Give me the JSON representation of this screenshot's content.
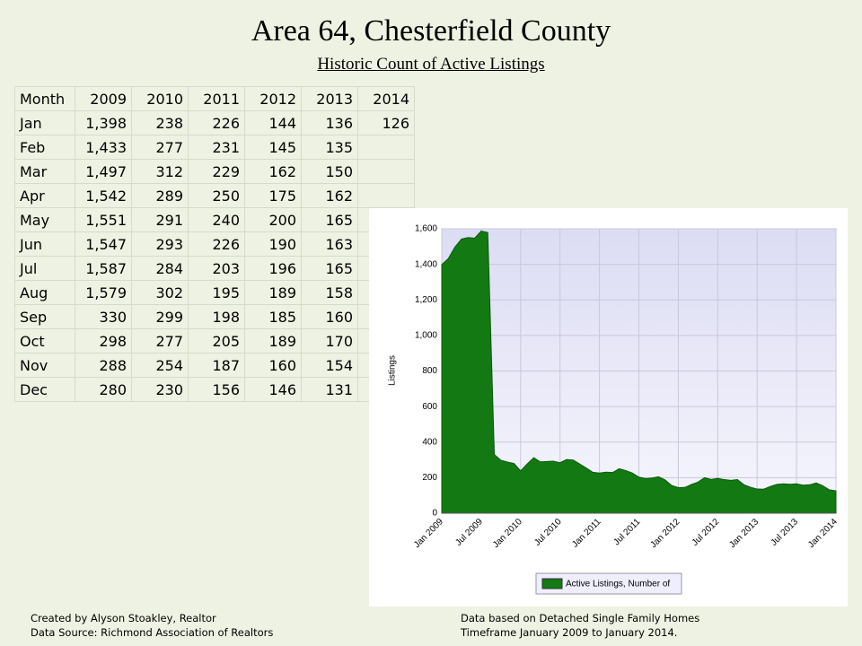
{
  "header": {
    "title": "Area 64, Chesterfield County",
    "subtitle": "Historic Count of Active Listings"
  },
  "table": {
    "header": [
      "Month",
      "2009",
      "2010",
      "2011",
      "2012",
      "2013",
      "2014"
    ],
    "rows": [
      [
        "Jan",
        "1,398",
        "238",
        "226",
        "144",
        "136",
        "126"
      ],
      [
        "Feb",
        "1,433",
        "277",
        "231",
        "145",
        "135",
        null
      ],
      [
        "Mar",
        "1,497",
        "312",
        "229",
        "162",
        "150",
        null
      ],
      [
        "Apr",
        "1,542",
        "289",
        "250",
        "175",
        "162",
        null
      ],
      [
        "May",
        "1,551",
        "291",
        "240",
        "200",
        "165",
        null
      ],
      [
        "Jun",
        "1,547",
        "293",
        "226",
        "190",
        "163",
        null
      ],
      [
        "Jul",
        "1,587",
        "284",
        "203",
        "196",
        "165",
        null
      ],
      [
        "Aug",
        "1,579",
        "302",
        "195",
        "189",
        "158",
        null
      ],
      [
        "Sep",
        "330",
        "299",
        "198",
        "185",
        "160",
        null
      ],
      [
        "Oct",
        "298",
        "277",
        "205",
        "189",
        "170",
        null
      ],
      [
        "Nov",
        "288",
        "254",
        "187",
        "160",
        "154",
        null
      ],
      [
        "Dec",
        "280",
        "230",
        "156",
        "146",
        "131",
        null
      ]
    ]
  },
  "chart_data": {
    "type": "area",
    "y_label": "Listings",
    "categories": [
      "Jan 2009",
      null,
      null,
      null,
      null,
      null,
      "Jul 2009",
      null,
      null,
      null,
      null,
      null,
      "Jan 2010",
      null,
      null,
      null,
      null,
      null,
      "Jul 2010",
      null,
      null,
      null,
      null,
      null,
      "Jan 2011",
      null,
      null,
      null,
      null,
      null,
      "Jul 2011",
      null,
      null,
      null,
      null,
      null,
      "Jan 2012",
      null,
      null,
      null,
      null,
      null,
      "Jul 2012",
      null,
      null,
      null,
      null,
      null,
      "Jan 2013",
      null,
      null,
      null,
      null,
      null,
      "Jul 2013",
      null,
      null,
      null,
      null,
      null,
      "Jan 2014"
    ],
    "series": [
      {
        "name": "Active Listings, Number of",
        "color": "#137a13",
        "values": [
          1398,
          1433,
          1497,
          1542,
          1551,
          1547,
          1587,
          1579,
          330,
          298,
          288,
          280,
          238,
          277,
          312,
          289,
          291,
          293,
          284,
          302,
          299,
          277,
          254,
          230,
          226,
          231,
          229,
          250,
          240,
          226,
          203,
          195,
          198,
          205,
          187,
          156,
          144,
          145,
          162,
          175,
          200,
          190,
          196,
          189,
          185,
          189,
          160,
          146,
          136,
          135,
          150,
          162,
          165,
          163,
          165,
          158,
          160,
          170,
          154,
          131,
          126
        ]
      }
    ],
    "ylim": [
      0,
      1600
    ],
    "yticks": [
      0,
      200,
      400,
      600,
      800,
      {
        "value": 1000,
        "label": "1,000"
      },
      {
        "value": 1200,
        "label": "1,200"
      },
      {
        "value": 1400,
        "label": "1,400"
      },
      {
        "value": 1600,
        "label": "1,600"
      }
    ],
    "grid": true
  },
  "footer": {
    "left": [
      "Created by Alyson Stoakley, Realtor",
      "Data Source: Richmond Association of Realtors"
    ],
    "right": [
      "Data based on Detached Single Family Homes",
      "Timeframe January 2009 to January 2014."
    ]
  }
}
